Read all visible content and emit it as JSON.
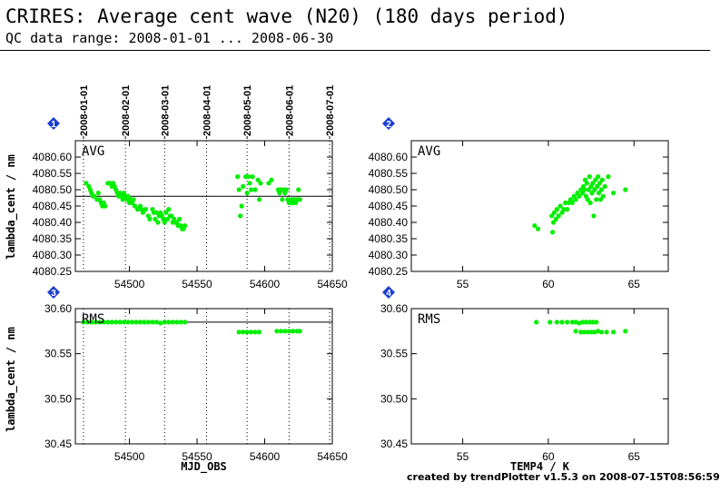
{
  "header": {
    "title": "CRIRES: Average cent wave (N20) (180 days period)",
    "subtitle": "QC data range: 2008-01-01 ... 2008-06-30"
  },
  "footer": "created by trendPlotter v1.5.3 on 2008-07-15T08:56:59",
  "colors": {
    "points": "#00ee00",
    "frame": "#000000",
    "badge": "#1a3fd0"
  },
  "chart_data": [
    {
      "id": "1",
      "type": "scatter",
      "label": "AVG",
      "xlabel": "",
      "ylabel": "lambda_cent / nm",
      "xlim": [
        54460,
        54650
      ],
      "ylim": [
        4080.25,
        4080.65
      ],
      "xticks": [
        54500,
        54550,
        54600,
        54650
      ],
      "yticks": [
        4080.25,
        4080.3,
        4080.35,
        4080.4,
        4080.45,
        4080.5,
        4080.55,
        4080.6
      ],
      "ytick_labels": [
        "4080.25",
        "4080.30",
        "4080.35",
        "4080.40",
        "4080.45",
        "4080.50",
        "4080.55",
        "4080.60"
      ],
      "reference_line": 4080.48,
      "date_lines": [
        {
          "mjd": 54466,
          "label": "2008-01-01"
        },
        {
          "mjd": 54497,
          "label": "2008-02-01"
        },
        {
          "mjd": 54526,
          "label": "2008-03-01"
        },
        {
          "mjd": 54557,
          "label": "2008-04-01"
        },
        {
          "mjd": 54587,
          "label": "2008-05-01"
        },
        {
          "mjd": 54618,
          "label": "2008-06-01"
        },
        {
          "mjd": 54648,
          "label": "2008-07-01"
        }
      ],
      "points": [
        [
          54468,
          4080.52
        ],
        [
          54470,
          4080.51
        ],
        [
          54471,
          4080.5
        ],
        [
          54472,
          4080.49
        ],
        [
          54473,
          4080.48
        ],
        [
          54474,
          4080.48
        ],
        [
          54476,
          4080.47
        ],
        [
          54477,
          4080.49
        ],
        [
          54478,
          4080.47
        ],
        [
          54479,
          4080.46
        ],
        [
          54480,
          4080.45
        ],
        [
          54481,
          4080.46
        ],
        [
          54482,
          4080.45
        ],
        [
          54484,
          4080.52
        ],
        [
          54485,
          4080.52
        ],
        [
          54486,
          4080.52
        ],
        [
          54487,
          4080.51
        ],
        [
          54488,
          4080.52
        ],
        [
          54489,
          4080.51
        ],
        [
          54490,
          4080.5
        ],
        [
          54491,
          4080.49
        ],
        [
          54492,
          4080.48
        ],
        [
          54493,
          4080.49
        ],
        [
          54494,
          4080.48
        ],
        [
          54495,
          4080.47
        ],
        [
          54496,
          4080.49
        ],
        [
          54497,
          4080.48
        ],
        [
          54498,
          4080.47
        ],
        [
          54499,
          4080.48
        ],
        [
          54500,
          4080.46
        ],
        [
          54501,
          4080.47
        ],
        [
          54502,
          4080.46
        ],
        [
          54503,
          4080.47
        ],
        [
          54504,
          4080.45
        ],
        [
          54506,
          4080.44
        ],
        [
          54508,
          4080.45
        ],
        [
          54509,
          4080.44
        ],
        [
          54510,
          4080.43
        ],
        [
          54512,
          4080.44
        ],
        [
          54514,
          4080.42
        ],
        [
          54515,
          4080.41
        ],
        [
          54517,
          4080.44
        ],
        [
          54518,
          4080.43
        ],
        [
          54519,
          4080.41
        ],
        [
          54520,
          4080.43
        ],
        [
          54521,
          4080.4
        ],
        [
          54522,
          4080.42
        ],
        [
          54523,
          4080.43
        ],
        [
          54524,
          4080.42
        ],
        [
          54525,
          4080.41
        ],
        [
          54526,
          4080.4
        ],
        [
          54527,
          4080.43
        ],
        [
          54528,
          4080.41
        ],
        [
          54529,
          4080.44
        ],
        [
          54530,
          4080.42
        ],
        [
          54531,
          4080.42
        ],
        [
          54532,
          4080.4
        ],
        [
          54533,
          4080.41
        ],
        [
          54534,
          4080.4
        ],
        [
          54535,
          4080.4
        ],
        [
          54536,
          4080.39
        ],
        [
          54537,
          4080.41
        ],
        [
          54538,
          4080.39
        ],
        [
          54539,
          4080.38
        ],
        [
          54540,
          4080.38
        ],
        [
          54541,
          4080.39
        ],
        [
          54580,
          4080.54
        ],
        [
          54581,
          4080.5
        ],
        [
          54582,
          4080.42
        ],
        [
          54583,
          4080.45
        ],
        [
          54584,
          4080.51
        ],
        [
          54586,
          4080.54
        ],
        [
          54587,
          4080.49
        ],
        [
          54588,
          4080.54
        ],
        [
          54589,
          4080.52
        ],
        [
          54590,
          4080.5
        ],
        [
          54591,
          4080.54
        ],
        [
          54593,
          4080.5
        ],
        [
          54595,
          4080.53
        ],
        [
          54596,
          4080.47
        ],
        [
          54597,
          4080.52
        ],
        [
          54603,
          4080.52
        ],
        [
          54605,
          4080.53
        ],
        [
          54610,
          4080.5
        ],
        [
          54611,
          4080.49
        ],
        [
          54612,
          4080.5
        ],
        [
          54613,
          4080.47
        ],
        [
          54614,
          4080.5
        ],
        [
          54615,
          4080.49
        ],
        [
          54616,
          4080.5
        ],
        [
          54617,
          4080.47
        ],
        [
          54618,
          4080.46
        ],
        [
          54619,
          4080.46
        ],
        [
          54620,
          4080.47
        ],
        [
          54621,
          4080.46
        ],
        [
          54622,
          4080.47
        ],
        [
          54623,
          4080.46
        ],
        [
          54624,
          4080.47
        ],
        [
          54625,
          4080.5
        ],
        [
          54626,
          4080.47
        ]
      ]
    },
    {
      "id": "2",
      "type": "scatter",
      "label": "AVG",
      "xlabel": "",
      "ylabel": "",
      "xlim": [
        52,
        67
      ],
      "ylim": [
        4080.25,
        4080.65
      ],
      "xticks": [
        55,
        60,
        65
      ],
      "yticks": [
        4080.25,
        4080.3,
        4080.35,
        4080.4,
        4080.45,
        4080.5,
        4080.55,
        4080.6
      ],
      "ytick_labels": [
        "4080.25",
        "4080.30",
        "4080.35",
        "4080.40",
        "4080.45",
        "4080.50",
        "4080.55",
        "4080.60"
      ],
      "points": [
        [
          59.2,
          4080.39
        ],
        [
          59.4,
          4080.38
        ],
        [
          60.2,
          4080.42
        ],
        [
          60.25,
          4080.37
        ],
        [
          60.3,
          4080.4
        ],
        [
          60.35,
          4080.43
        ],
        [
          60.45,
          4080.41
        ],
        [
          60.5,
          4080.44
        ],
        [
          60.6,
          4080.42
        ],
        [
          60.7,
          4080.45
        ],
        [
          60.8,
          4080.43
        ],
        [
          60.9,
          4080.44
        ],
        [
          61.0,
          4080.46
        ],
        [
          61.1,
          4080.44
        ],
        [
          61.2,
          4080.46
        ],
        [
          61.3,
          4080.47
        ],
        [
          61.4,
          4080.46
        ],
        [
          61.5,
          4080.48
        ],
        [
          61.6,
          4080.47
        ],
        [
          61.7,
          4080.49
        ],
        [
          61.8,
          4080.48
        ],
        [
          61.9,
          4080.5
        ],
        [
          62.0,
          4080.49
        ],
        [
          62.05,
          4080.51
        ],
        [
          62.1,
          4080.5
        ],
        [
          62.15,
          4080.53
        ],
        [
          62.2,
          4080.48
        ],
        [
          62.25,
          4080.52
        ],
        [
          62.3,
          4080.47
        ],
        [
          62.35,
          4080.5
        ],
        [
          62.4,
          4080.54
        ],
        [
          62.45,
          4080.46
        ],
        [
          62.5,
          4080.51
        ],
        [
          62.55,
          4080.49
        ],
        [
          62.6,
          4080.52
        ],
        [
          62.65,
          4080.42
        ],
        [
          62.7,
          4080.5
        ],
        [
          62.75,
          4080.53
        ],
        [
          62.8,
          4080.47
        ],
        [
          62.85,
          4080.51
        ],
        [
          62.9,
          4080.54
        ],
        [
          62.95,
          4080.49
        ],
        [
          63.0,
          4080.52
        ],
        [
          63.05,
          4080.47
        ],
        [
          63.1,
          4080.5
        ],
        [
          63.15,
          4080.53
        ],
        [
          63.2,
          4080.48
        ],
        [
          63.3,
          4080.51
        ],
        [
          63.5,
          4080.54
        ],
        [
          63.8,
          4080.49
        ],
        [
          64.5,
          4080.5
        ]
      ]
    },
    {
      "id": "3",
      "type": "scatter",
      "label": "RMS",
      "xlabel": "MJD_OBS",
      "ylabel": "lambda_cent / nm",
      "xlim": [
        54460,
        54650
      ],
      "ylim": [
        30.45,
        30.6
      ],
      "xticks": [
        54500,
        54550,
        54600,
        54650
      ],
      "yticks": [
        30.45,
        30.5,
        30.55,
        30.6
      ],
      "ytick_labels": [
        "30.45",
        "30.50",
        "30.55",
        "30.60"
      ],
      "reference_line": 30.585,
      "date_lines": [
        {
          "mjd": 54466
        },
        {
          "mjd": 54497
        },
        {
          "mjd": 54526
        },
        {
          "mjd": 54557
        },
        {
          "mjd": 54587
        },
        {
          "mjd": 54618
        },
        {
          "mjd": 54648
        }
      ],
      "points": [
        [
          54466,
          30.585
        ],
        [
          54469,
          30.585
        ],
        [
          54472,
          30.585
        ],
        [
          54475,
          30.585
        ],
        [
          54478,
          30.585
        ],
        [
          54481,
          30.585
        ],
        [
          54484,
          30.585
        ],
        [
          54487,
          30.585
        ],
        [
          54490,
          30.585
        ],
        [
          54493,
          30.585
        ],
        [
          54496,
          30.585
        ],
        [
          54499,
          30.585
        ],
        [
          54502,
          30.585
        ],
        [
          54505,
          30.585
        ],
        [
          54508,
          30.585
        ],
        [
          54511,
          30.585
        ],
        [
          54514,
          30.585
        ],
        [
          54517,
          30.585
        ],
        [
          54520,
          30.585
        ],
        [
          54523,
          30.584
        ],
        [
          54526,
          30.585
        ],
        [
          54529,
          30.585
        ],
        [
          54532,
          30.585
        ],
        [
          54535,
          30.585
        ],
        [
          54538,
          30.585
        ],
        [
          54541,
          30.585
        ],
        [
          54581,
          30.574
        ],
        [
          54584,
          30.574
        ],
        [
          54587,
          30.574
        ],
        [
          54590,
          30.574
        ],
        [
          54593,
          30.574
        ],
        [
          54596,
          30.574
        ],
        [
          54609,
          30.575
        ],
        [
          54612,
          30.575
        ],
        [
          54615,
          30.575
        ],
        [
          54618,
          30.575
        ],
        [
          54621,
          30.575
        ],
        [
          54624,
          30.575
        ],
        [
          54626,
          30.575
        ]
      ]
    },
    {
      "id": "4",
      "type": "scatter",
      "label": "RMS",
      "xlabel": "TEMP4 / K",
      "ylabel": "",
      "xlim": [
        52,
        67
      ],
      "ylim": [
        30.45,
        30.6
      ],
      "xticks": [
        55,
        60,
        65
      ],
      "yticks": [
        30.45,
        30.5,
        30.55,
        30.6
      ],
      "ytick_labels": [
        "30.45",
        "30.50",
        "30.55",
        "30.60"
      ],
      "points": [
        [
          59.3,
          30.585
        ],
        [
          60.1,
          30.585
        ],
        [
          60.5,
          30.585
        ],
        [
          60.8,
          30.585
        ],
        [
          61.1,
          30.585
        ],
        [
          61.4,
          30.585
        ],
        [
          61.6,
          30.585
        ],
        [
          61.8,
          30.584
        ],
        [
          62.0,
          30.585
        ],
        [
          62.2,
          30.585
        ],
        [
          62.4,
          30.585
        ],
        [
          62.6,
          30.585
        ],
        [
          62.8,
          30.585
        ],
        [
          61.6,
          30.575
        ],
        [
          61.9,
          30.574
        ],
        [
          62.1,
          30.574
        ],
        [
          62.3,
          30.574
        ],
        [
          62.5,
          30.574
        ],
        [
          62.7,
          30.574
        ],
        [
          62.9,
          30.575
        ],
        [
          63.1,
          30.574
        ],
        [
          63.4,
          30.574
        ],
        [
          63.8,
          30.574
        ],
        [
          64.5,
          30.575
        ]
      ]
    }
  ]
}
